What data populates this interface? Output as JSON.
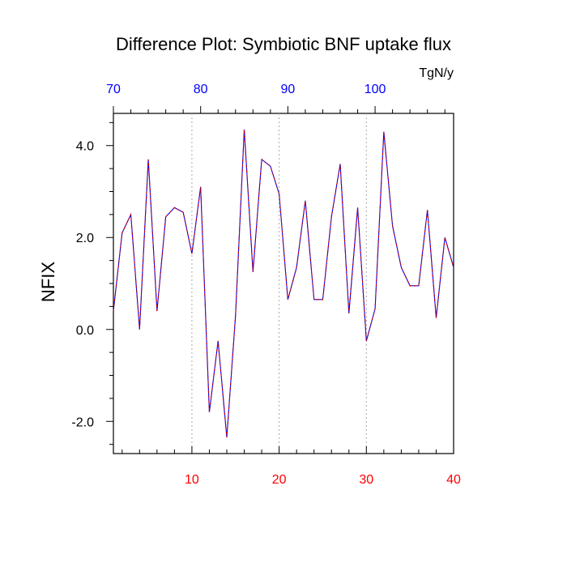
{
  "chart_data": {
    "type": "line",
    "title": "Difference Plot: Symbiotic BNF uptake flux",
    "units": "TgN/y",
    "ylabel": "NFIX",
    "xlabel": "",
    "xlim": [
      1,
      40
    ],
    "ylim": [
      -2.7,
      4.7
    ],
    "x_ticks": [
      10,
      20,
      30,
      40
    ],
    "top_ticks": [
      {
        "at": 1,
        "label": "70"
      },
      {
        "at": 11,
        "label": "80"
      },
      {
        "at": 21,
        "label": "90"
      },
      {
        "at": 31,
        "label": "100"
      }
    ],
    "y_ticks": [
      -2.0,
      0.0,
      2.0,
      4.0
    ],
    "y_tick_labels": [
      "-2.0",
      "0.0",
      "2.0",
      "4.0"
    ],
    "grid": "dotted vertical lines at x = 10, 20, 30",
    "colors": {
      "bottom_tick_labels": "#ff0000",
      "top_tick_labels": "#0000ff",
      "series_solid": "#0000ff",
      "series_dashed": "#cc0000",
      "grid": "#aaaaaa"
    },
    "x": [
      1,
      2,
      3,
      4,
      5,
      6,
      7,
      8,
      9,
      10,
      11,
      12,
      13,
      14,
      15,
      16,
      17,
      18,
      19,
      20,
      21,
      22,
      23,
      24,
      25,
      26,
      27,
      28,
      29,
      30,
      31,
      32,
      33,
      34,
      35,
      36,
      37,
      38,
      39,
      40
    ],
    "series": [
      {
        "values": [
          0.4,
          2.1,
          2.5,
          0.0,
          3.7,
          0.4,
          2.45,
          2.65,
          2.55,
          1.65,
          3.1,
          -1.8,
          -0.25,
          -2.35,
          0.3,
          4.35,
          1.25,
          3.7,
          3.55,
          2.95,
          0.65,
          1.35,
          2.8,
          0.65,
          0.65,
          2.45,
          3.6,
          0.35,
          2.65,
          -0.25,
          0.45,
          4.3,
          2.25,
          1.35,
          0.95,
          0.95,
          2.6,
          0.25,
          2.0,
          1.35
        ]
      }
    ]
  }
}
